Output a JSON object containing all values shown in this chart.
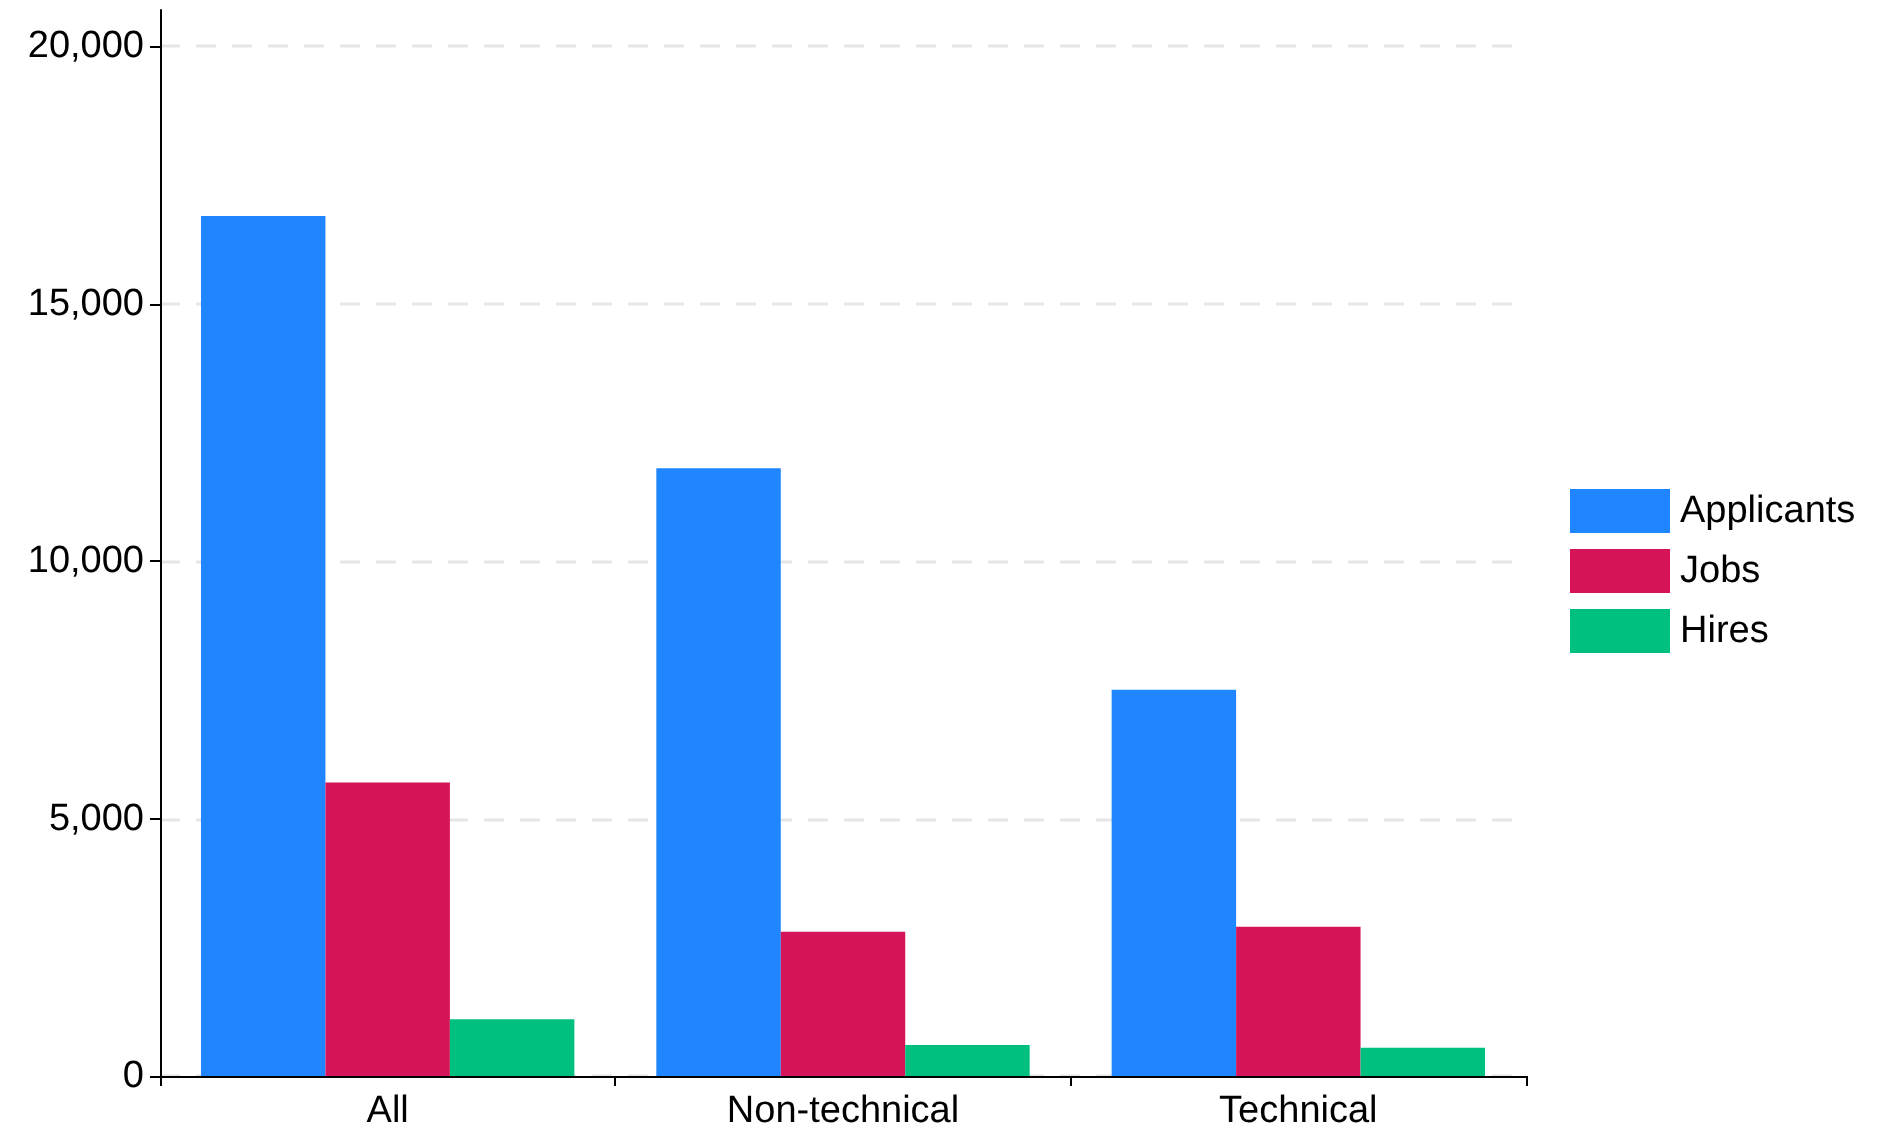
{
  "chart_data": {
    "type": "bar",
    "categories": [
      "All",
      "Non-technical",
      "Technical"
    ],
    "series": [
      {
        "name": "Applicants",
        "color": "#1f86ff",
        "values": [
          16700,
          11800,
          7500
        ]
      },
      {
        "name": "Jobs",
        "color": "#d6145a",
        "values": [
          5700,
          2800,
          2900
        ]
      },
      {
        "name": "Hires",
        "color": "#00c07f",
        "values": [
          1100,
          600,
          550
        ]
      }
    ],
    "ylim": [
      0,
      20700
    ],
    "yticks": [
      {
        "value": 0,
        "label": "0"
      },
      {
        "value": 5000,
        "label": "5,000"
      },
      {
        "value": 10000,
        "label": "10,000"
      },
      {
        "value": 15000,
        "label": "15,000"
      },
      {
        "value": 20000,
        "label": "20,000"
      }
    ],
    "grid": "y",
    "legend": "right"
  }
}
